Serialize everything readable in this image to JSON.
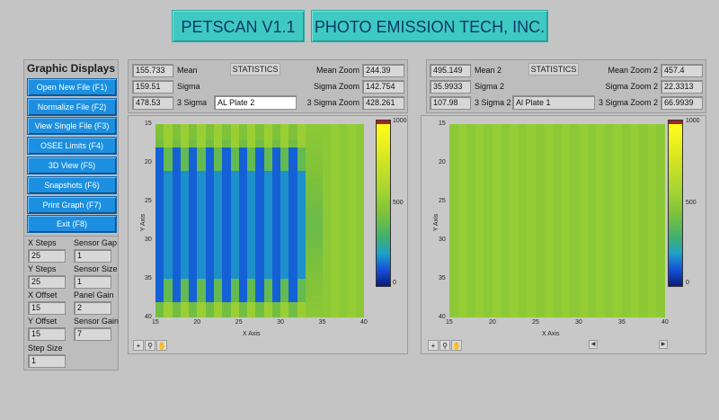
{
  "header": {
    "app_title": "PETSCAN V1.1",
    "company_title": "PHOTO EMISSION TECH, INC."
  },
  "sidebar": {
    "title": "Graphic Displays",
    "buttons": [
      {
        "label": "Open New File (F1)"
      },
      {
        "label": "Normalize File (F2)"
      },
      {
        "label": "View Single File (F3)"
      },
      {
        "label": "OSEE Limits (F4)"
      },
      {
        "label": "3D View (F5)"
      },
      {
        "label": "Snapshots (F6)"
      },
      {
        "label": "Print Graph (F7)"
      },
      {
        "label": "Exit (F8)"
      }
    ],
    "params": {
      "x_steps_label": "X Steps",
      "x_steps": "25",
      "y_steps_label": "Y Steps",
      "y_steps": "25",
      "x_offset_label": "X Offset",
      "x_offset": "15",
      "y_offset_label": "Y Offset",
      "y_offset": "15",
      "step_size_label": "Step Size",
      "step_size": "1",
      "sensor_gap_label": "Sensor Gap",
      "sensor_gap": "1",
      "sensor_size_label": "Sensor Size",
      "sensor_size": "1",
      "panel_gain_label": "Panel Gain",
      "panel_gain": "2",
      "sensor_gain_label": "Sensor Gain",
      "sensor_gain": "7"
    }
  },
  "stats_left": {
    "title": "STATISTICS",
    "mean": "155.733",
    "mean_label": "Mean",
    "sigma": "159.51",
    "sigma_label": "Sigma",
    "sigma3": "478.53",
    "sigma3_label": "3 Sigma",
    "file_name": "AL Plate 2",
    "mean_zoom_label": "Mean Zoom",
    "mean_zoom": "244.39",
    "sigma_zoom_label": "Sigma Zoom",
    "sigma_zoom": "142.754",
    "sigma3_zoom_label": "3 Sigma Zoom",
    "sigma3_zoom": "428.261"
  },
  "stats_right": {
    "title": "STATISTICS",
    "mean": "495.149",
    "mean_label": "Mean 2",
    "sigma": "35.9933",
    "sigma_label": "Sigma 2",
    "sigma3": "107.98",
    "sigma3_label": "3 Sigma 2",
    "file_name": "Al Plate 1",
    "mean_zoom_label": "Mean Zoom 2",
    "mean_zoom": "457.4",
    "sigma_zoom_label": "Sigma Zoom 2",
    "sigma_zoom": "22.3313",
    "sigma3_zoom_label": "3 Sigma Zoom 2",
    "sigma3_zoom": "66.9939"
  },
  "graphs": {
    "x_axis_label": "X Axis",
    "y_axis_label": "Y Axis",
    "x_ticks": [
      "15",
      "20",
      "25",
      "30",
      "35",
      "40"
    ],
    "y_ticks": [
      "15",
      "20",
      "25",
      "30",
      "35",
      "40"
    ],
    "colorbar_ticks": [
      "1000",
      "500",
      "0"
    ],
    "left_heatmap_range": [
      0,
      1000
    ],
    "right_heatmap_range": [
      0,
      1000
    ]
  },
  "colors": {
    "title_bg": "#3ec9c2",
    "nav_button_bg": "#1c8fe0",
    "panel_bg": "#c4c4c4"
  },
  "icons": [
    "crosshair-icon",
    "zoom-icon",
    "hand-pan-icon",
    "scroll-left-arrow-icon",
    "scroll-right-arrow-icon"
  ]
}
